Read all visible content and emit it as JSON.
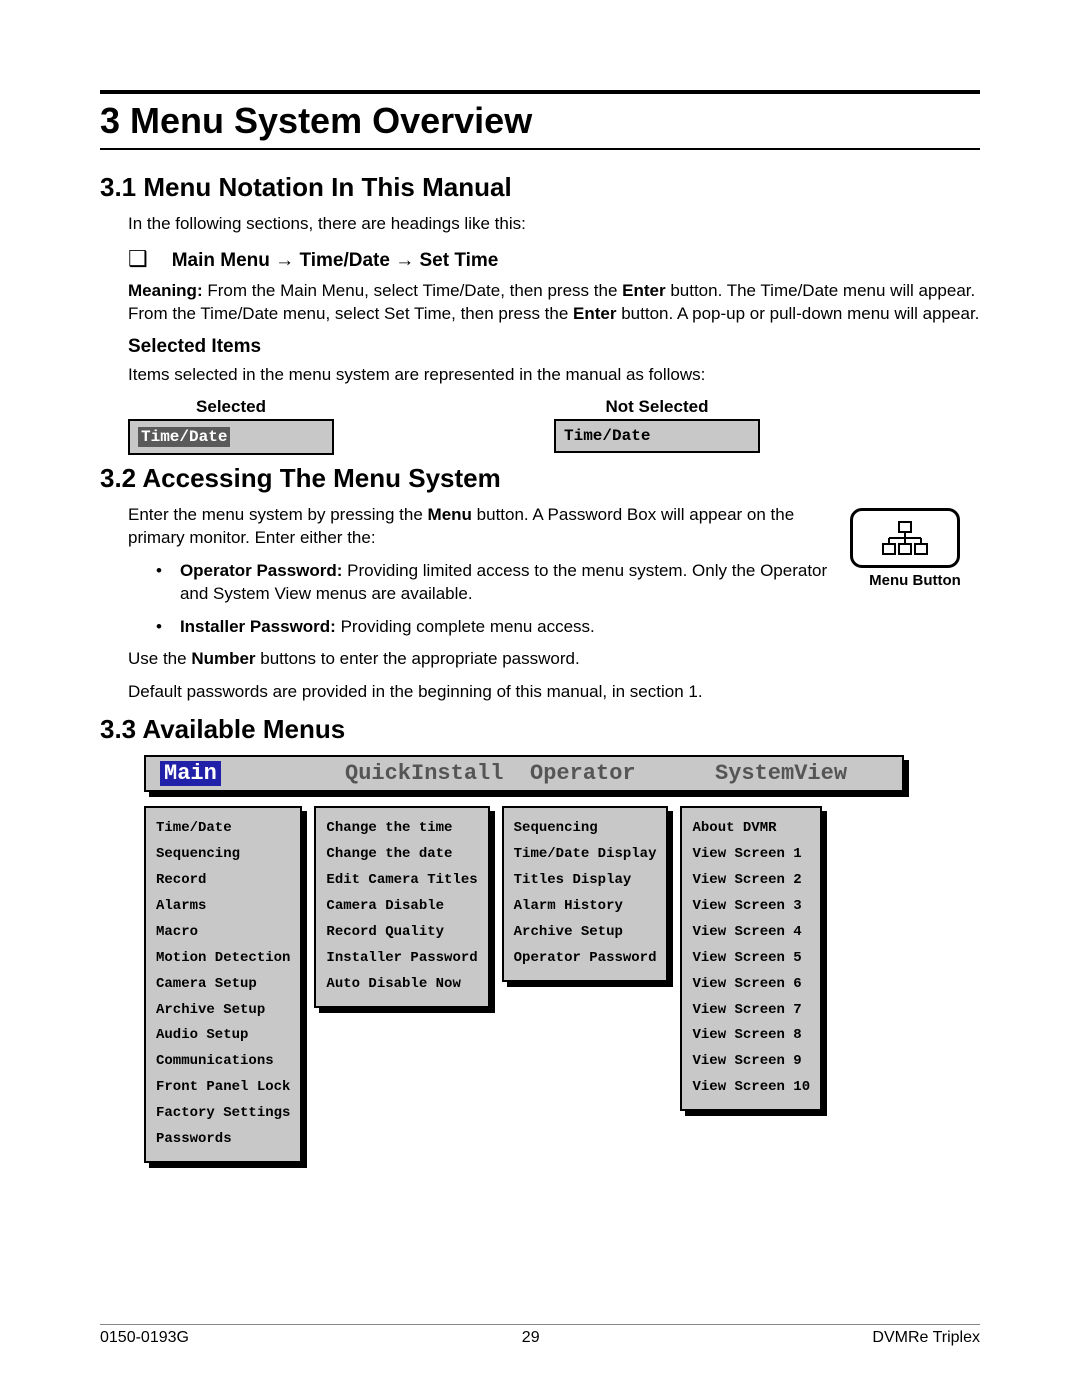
{
  "chapter": "3 Menu System Overview",
  "s31": {
    "title": "3.1 Menu Notation In This Manual",
    "intro": "In the following sections, there are headings like this:",
    "path": "Main Menu → Time/Date → Set Time",
    "meaning_pre": "Meaning:",
    "meaning_body": "  From the Main Menu, select Time/Date, then press the ",
    "enter1": "Enter",
    "meaning_mid": " button.  The Time/Date menu will appear.  From the Time/Date menu, select Set Time, then press the ",
    "enter2": "Enter",
    "meaning_end": " button.  A pop-up or pull-down menu will appear.",
    "sel_heading": "Selected Items",
    "sel_text": "Items selected in the menu system are represented in the manual as follows:",
    "sel_label": "Selected",
    "notsel_label": "Not Selected",
    "sel_value": "Time/Date",
    "notsel_value": "Time/Date"
  },
  "s32": {
    "title": "3.2 Accessing The Menu System",
    "p1a": "Enter the menu system by pressing the ",
    "p1b": "Menu",
    "p1c": " button.  A Password Box will appear on the primary monitor.  Enter either the:",
    "b1a": "Operator Password:",
    "b1b": "  Providing limited access to the menu system.  Only the Operator and System View menus are available.",
    "b2a": "Installer Password:",
    "b2b": "  Providing complete menu access.",
    "p2a": "Use the ",
    "p2b": "Number",
    "p2c": " buttons to enter the appropriate password.",
    "p3": "Default passwords are provided in the beginning of this manual, in section 1.",
    "button_caption": "Menu Button"
  },
  "s33": {
    "title": "3.3 Available Menus",
    "tabs": [
      "Main",
      "QuickInstall",
      "Operator",
      "SystemView"
    ],
    "cols": [
      [
        "Time/Date",
        "Sequencing",
        "Record",
        "Alarms",
        "Macro",
        "Motion Detection",
        "Camera Setup",
        "Archive Setup",
        "Audio Setup",
        "Communications",
        "Front Panel Lock",
        "Factory Settings",
        "Passwords"
      ],
      [
        "Change the time",
        "Change the date",
        "Edit Camera Titles",
        "Camera Disable",
        "Record Quality",
        "Installer Password",
        "Auto Disable Now"
      ],
      [
        "Sequencing",
        "Time/Date Display",
        "Titles Display",
        "Alarm History",
        "Archive Setup",
        "Operator Password"
      ],
      [
        "About DVMR",
        "View Screen 1",
        "View Screen 2",
        "View Screen 3",
        "View Screen 4",
        "View Screen 5",
        "View Screen 6",
        "View Screen 7",
        "View Screen 8",
        "View Screen 9",
        "View Screen 10"
      ]
    ]
  },
  "footer": {
    "left": "0150-0193G",
    "mid": "29",
    "right": "DVMRe Triplex"
  },
  "colors": {
    "selected_bg": "#5a5a5a",
    "selected_fg": "#ffffff",
    "panel_bg": "#c8c8c8",
    "tab_sel_bg": "#2020a8"
  }
}
